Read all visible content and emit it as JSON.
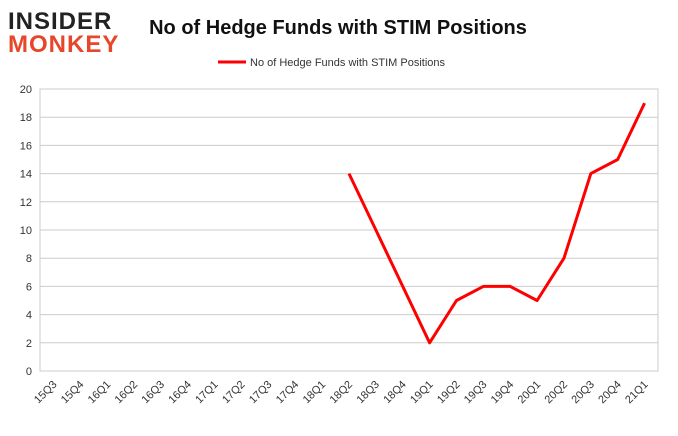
{
  "brand": {
    "line1": "INSIDER",
    "line2": "MONKEY"
  },
  "chart_data": {
    "type": "line",
    "title": "No of Hedge Funds with STIM Positions",
    "categories": [
      "15Q3",
      "15Q4",
      "16Q1",
      "16Q2",
      "16Q3",
      "16Q4",
      "17Q1",
      "17Q2",
      "17Q3",
      "17Q4",
      "18Q1",
      "18Q2",
      "18Q3",
      "18Q4",
      "19Q1",
      "19Q2",
      "19Q3",
      "19Q4",
      "20Q1",
      "20Q2",
      "20Q3",
      "20Q4",
      "21Q1"
    ],
    "series": [
      {
        "name": "No of Hedge Funds with STIM Positions",
        "color": "#ff0000",
        "values": [
          null,
          null,
          null,
          null,
          null,
          null,
          null,
          null,
          null,
          null,
          null,
          14,
          10,
          6,
          2,
          5,
          6,
          6,
          5,
          8,
          14,
          15,
          19
        ]
      }
    ],
    "ylim": [
      0,
      20
    ],
    "yticks": [
      0,
      2,
      4,
      6,
      8,
      10,
      12,
      14,
      16,
      18,
      20
    ],
    "grid": true,
    "legend": "top"
  }
}
